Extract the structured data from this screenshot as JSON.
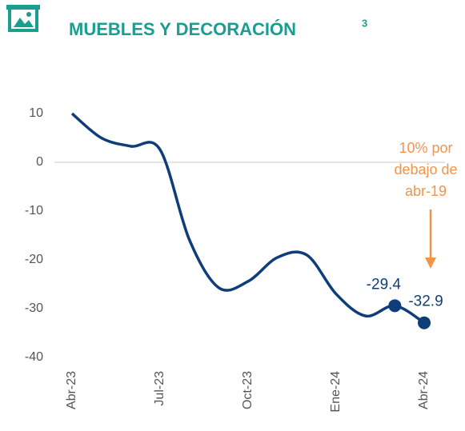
{
  "chart_data": {
    "type": "line",
    "title": "MUEBLES  Y DECORACIÓN",
    "title_note": "3",
    "categories": [
      "Abr-23",
      null,
      null,
      "Jul-23",
      null,
      null,
      "Oct-23",
      null,
      null,
      "Ene-24",
      null,
      null,
      "Abr-24"
    ],
    "series": [
      {
        "name": "Muebles y decoración",
        "color": "#0f3d7a",
        "values": [
          10,
          5,
          3.3,
          2.6,
          -15.9,
          -25.7,
          -24.4,
          -19.5,
          -19,
          -27,
          -31.5,
          -29.4,
          -32.9
        ],
        "value_labels": [
          null,
          null,
          null,
          null,
          null,
          null,
          null,
          null,
          null,
          null,
          null,
          "-29.4",
          "-32.9"
        ]
      }
    ],
    "ylim": [
      -40,
      12
    ],
    "yticks": [
      -40,
      -30,
      -20,
      -10,
      0,
      10
    ],
    "annotation": [
      "10% por",
      "debajo de",
      "abr-19"
    ],
    "annotation_color": "#f0954a"
  }
}
